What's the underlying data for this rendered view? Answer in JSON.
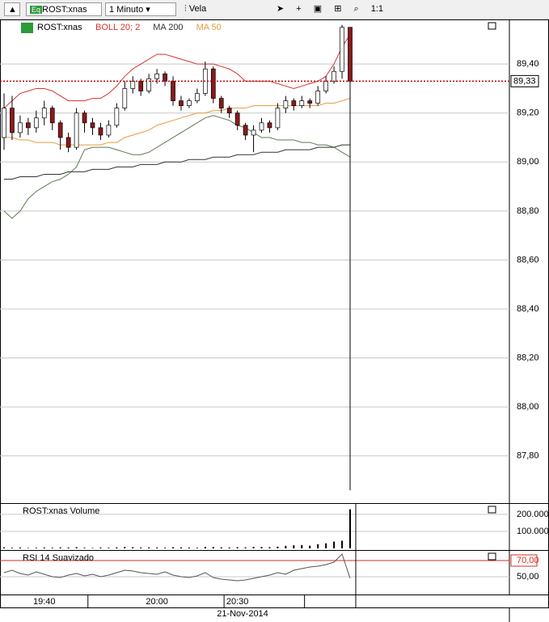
{
  "toolbar": {
    "symbol": "ROST:xnas",
    "interval": "1 Minuto",
    "style": "Vela",
    "zoom": "1:1"
  },
  "date_label": "21-Nov-2014",
  "chart_data": [
    {
      "type": "candlestick",
      "title": "ROST:xnas",
      "categories": [
        null,
        null,
        null,
        null,
        null,
        "19:40",
        null,
        null,
        null,
        null,
        null,
        null,
        null,
        null,
        null,
        null,
        null,
        null,
        null,
        "20:00",
        null,
        null,
        null,
        null,
        null,
        null,
        null,
        null,
        null,
        "20:30",
        null,
        null,
        null,
        null,
        null,
        null,
        null,
        null,
        null,
        null,
        null,
        null,
        null,
        null
      ],
      "open": [
        89.1,
        89.22,
        89.12,
        89.16,
        89.14,
        89.18,
        89.22,
        89.16,
        89.1,
        89.06,
        89.2,
        89.16,
        89.14,
        89.11,
        89.15,
        89.22,
        89.3,
        89.33,
        89.29,
        89.34,
        89.36,
        89.33,
        89.25,
        89.23,
        89.25,
        89.28,
        89.38,
        89.26,
        89.22,
        89.2,
        89.15,
        89.11,
        89.13,
        89.16,
        89.14,
        89.22,
        89.25,
        89.23,
        89.25,
        89.24,
        89.29,
        89.33,
        89.37,
        89.55
      ],
      "high": [
        89.28,
        89.27,
        89.19,
        89.18,
        89.21,
        89.25,
        89.23,
        89.17,
        89.12,
        89.22,
        89.21,
        89.18,
        89.16,
        89.17,
        89.24,
        89.33,
        89.35,
        89.34,
        89.36,
        89.38,
        89.37,
        89.35,
        89.27,
        89.26,
        89.3,
        89.41,
        89.39,
        89.27,
        89.23,
        89.21,
        89.16,
        89.15,
        89.18,
        89.17,
        89.24,
        89.27,
        89.26,
        89.27,
        89.26,
        89.31,
        89.35,
        89.39,
        89.56,
        89.55
      ],
      "low": [
        89.05,
        89.09,
        89.1,
        89.11,
        89.12,
        89.15,
        89.13,
        89.05,
        89.04,
        89.05,
        89.12,
        89.11,
        89.09,
        89.1,
        89.14,
        89.21,
        89.28,
        89.27,
        89.28,
        89.32,
        89.31,
        89.23,
        89.21,
        89.22,
        89.24,
        89.27,
        89.24,
        89.2,
        89.18,
        89.13,
        89.09,
        89.04,
        89.12,
        89.12,
        89.13,
        89.2,
        89.21,
        89.22,
        89.22,
        89.23,
        89.28,
        89.32,
        89.34,
        87.66
      ],
      "close": [
        89.22,
        89.12,
        89.16,
        89.14,
        89.18,
        89.22,
        89.16,
        89.1,
        89.06,
        89.2,
        89.16,
        89.14,
        89.11,
        89.15,
        89.22,
        89.3,
        89.33,
        89.29,
        89.34,
        89.36,
        89.33,
        89.25,
        89.23,
        89.25,
        89.28,
        89.38,
        89.26,
        89.22,
        89.2,
        89.15,
        89.11,
        89.13,
        89.16,
        89.14,
        89.22,
        89.25,
        89.23,
        89.25,
        89.24,
        89.29,
        89.33,
        89.37,
        89.55,
        89.33
      ],
      "up_color": "#ffffff",
      "down_color": "#8b1a1a",
      "overlays": [
        {
          "name": "BOLL 20; 2",
          "color": "#d83030",
          "upper": [
            89.22,
            89.25,
            89.28,
            89.29,
            89.3,
            89.3,
            89.29,
            89.27,
            89.25,
            89.25,
            89.25,
            89.26,
            89.26,
            89.28,
            89.31,
            89.35,
            89.38,
            89.4,
            89.42,
            89.44,
            89.44,
            89.43,
            89.42,
            89.41,
            89.4,
            89.4,
            89.4,
            89.39,
            89.38,
            89.36,
            89.33,
            89.33,
            89.33,
            89.33,
            89.32,
            89.31,
            89.3,
            89.31,
            89.32,
            89.33,
            89.35,
            89.4,
            89.47,
            89.52
          ],
          "lower_color": "#5a7a50",
          "lower": [
            88.8,
            88.77,
            88.8,
            88.85,
            88.88,
            88.9,
            88.92,
            88.93,
            88.95,
            88.98,
            89.05,
            89.06,
            89.06,
            89.06,
            89.05,
            89.04,
            89.03,
            89.03,
            89.04,
            89.06,
            89.08,
            89.1,
            89.12,
            89.14,
            89.16,
            89.18,
            89.19,
            89.18,
            89.17,
            89.15,
            89.14,
            89.12,
            89.1,
            89.1,
            89.09,
            89.09,
            89.09,
            89.08,
            89.08,
            89.07,
            89.07,
            89.06,
            89.04,
            89.02
          ]
        },
        {
          "name": "MA 200",
          "color": "#333333",
          "values": [
            88.93,
            88.93,
            88.94,
            88.94,
            88.94,
            88.95,
            88.95,
            88.95,
            88.96,
            88.96,
            88.96,
            88.97,
            88.97,
            88.97,
            88.98,
            88.98,
            88.98,
            88.99,
            88.99,
            88.99,
            89.0,
            89.0,
            89.0,
            89.01,
            89.01,
            89.01,
            89.02,
            89.02,
            89.02,
            89.03,
            89.03,
            89.03,
            89.04,
            89.04,
            89.04,
            89.05,
            89.05,
            89.05,
            89.05,
            89.06,
            89.06,
            89.06,
            89.07,
            89.07
          ]
        },
        {
          "name": "MA 50",
          "color": "#e89a40",
          "values": [
            89.1,
            89.1,
            89.09,
            89.09,
            89.08,
            89.08,
            89.08,
            89.07,
            89.07,
            89.07,
            89.07,
            89.07,
            89.07,
            89.08,
            89.08,
            89.1,
            89.11,
            89.12,
            89.13,
            89.15,
            89.16,
            89.17,
            89.18,
            89.19,
            89.2,
            89.2,
            89.21,
            89.21,
            89.22,
            89.22,
            89.22,
            89.23,
            89.23,
            89.23,
            89.23,
            89.23,
            89.23,
            89.23,
            89.23,
            89.23,
            89.24,
            89.24,
            89.25,
            89.26
          ]
        }
      ],
      "last_price": {
        "value": 89.33,
        "label": "89,33"
      },
      "last_price_color": "#c00000",
      "ylim": [
        87.614,
        89.569
      ],
      "yticks": [
        {
          "value": 87.8,
          "label": "87,80"
        },
        {
          "value": 88.0,
          "label": "88,00"
        },
        {
          "value": 88.2,
          "label": "88,20"
        },
        {
          "value": 88.4,
          "label": "88,40"
        },
        {
          "value": 88.6,
          "label": "88,60"
        },
        {
          "value": 88.8,
          "label": "88,80"
        },
        {
          "value": 89.0,
          "label": "89,00"
        },
        {
          "value": 89.2,
          "label": "89,20"
        },
        {
          "value": 89.4,
          "label": "89,40"
        }
      ],
      "grid": true
    },
    {
      "type": "bar",
      "title": "ROST:xnas Volume",
      "color": "#000000",
      "values": [
        6000,
        4000,
        5000,
        3000,
        4000,
        5000,
        4000,
        6000,
        5000,
        7000,
        4000,
        3000,
        5000,
        4000,
        6000,
        8000,
        7000,
        5000,
        6000,
        5000,
        4000,
        7000,
        6000,
        5000,
        4000,
        9000,
        8000,
        6000,
        5000,
        7000,
        6000,
        9000,
        8000,
        7000,
        10000,
        15000,
        18000,
        20000,
        16000,
        25000,
        30000,
        40000,
        45000,
        230000
      ],
      "ylim": [
        0,
        252000
      ],
      "yticks": [
        {
          "value": 100000,
          "label": "100.000"
        },
        {
          "value": 200000,
          "label": "200.000"
        }
      ],
      "grid": true
    },
    {
      "type": "line",
      "title": "RSI 14 Suavizado",
      "color": "#555555",
      "values": [
        55,
        58,
        54,
        52,
        56,
        53,
        50,
        49,
        52,
        54,
        51,
        53,
        50,
        52,
        55,
        58,
        57,
        55,
        54,
        53,
        56,
        52,
        50,
        49,
        51,
        55,
        49,
        47,
        46,
        45,
        46,
        48,
        50,
        52,
        55,
        53,
        58,
        60,
        62,
        63,
        65,
        68,
        78,
        48
      ],
      "ylim": [
        30,
        79
      ],
      "yticks": [
        {
          "value": 50,
          "label": "50,00"
        },
        {
          "value": 70,
          "label": "70,00"
        }
      ],
      "level_color": "#d03020",
      "grid": true
    }
  ]
}
